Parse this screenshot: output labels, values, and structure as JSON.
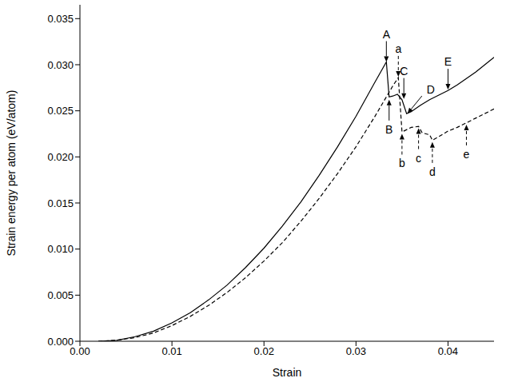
{
  "chart_data": {
    "type": "line",
    "x_label": "Strain",
    "y_label": "Strain energy per atom (eV/atom)",
    "xlim": [
      0,
      0.045
    ],
    "ylim": [
      0,
      0.0365
    ],
    "xticks": [
      {
        "value": 0,
        "label": "0.00"
      },
      0.01,
      0.02,
      0.03,
      0.04
    ],
    "yticks": [
      {
        "value": 0,
        "label": "0.000"
      },
      0.005,
      {
        "value": 0.01,
        "label": "0.010"
      },
      0.015,
      {
        "value": 0.02,
        "label": "0.020"
      },
      0.025,
      {
        "value": 0.03,
        "label": "0.030"
      },
      0.035
    ],
    "grid": false,
    "series": [
      {
        "color": "#000000",
        "line_style": "solid",
        "x": [
          0.002,
          0.004,
          0.006,
          0.008,
          0.01,
          0.012,
          0.014,
          0.016,
          0.018,
          0.02,
          0.022,
          0.024,
          0.026,
          0.028,
          0.03,
          0.032,
          0.0333,
          0.0336,
          0.034,
          0.0345,
          0.035,
          0.0355,
          0.036,
          0.037,
          0.038,
          0.039,
          0.04,
          0.041,
          0.042,
          0.043,
          0.044,
          0.045
        ],
        "values": [
          0,
          0.0001,
          0.0005,
          0.0011,
          0.002,
          0.0031,
          0.0045,
          0.0061,
          0.008,
          0.0101,
          0.0125,
          0.0151,
          0.018,
          0.0211,
          0.0244,
          0.028,
          0.0303,
          0.0265,
          0.0266,
          0.0268,
          0.0262,
          0.0247,
          0.0249,
          0.0256,
          0.0262,
          0.0267,
          0.0272,
          0.0278,
          0.0285,
          0.0292,
          0.03,
          0.0308
        ]
      },
      {
        "color": "#000000",
        "line_style": "dashed",
        "x": [
          0.002,
          0.004,
          0.006,
          0.008,
          0.01,
          0.012,
          0.014,
          0.016,
          0.018,
          0.02,
          0.022,
          0.024,
          0.026,
          0.028,
          0.03,
          0.032,
          0.034,
          0.0346,
          0.035,
          0.036,
          0.0368,
          0.0372,
          0.038,
          0.0383,
          0.039,
          0.04,
          0.041,
          0.042,
          0.043,
          0.044,
          0.045
        ],
        "values": [
          0,
          0.0001,
          0.0004,
          0.0009,
          0.0017,
          0.0027,
          0.0039,
          0.0053,
          0.0069,
          0.0087,
          0.0107,
          0.013,
          0.0155,
          0.0182,
          0.0211,
          0.0243,
          0.0277,
          0.0286,
          0.0227,
          0.0232,
          0.0233,
          0.0226,
          0.0224,
          0.0218,
          0.0222,
          0.0228,
          0.0232,
          0.0237,
          0.0242,
          0.0247,
          0.0252
        ]
      }
    ],
    "annotations": [
      {
        "text": "A",
        "x": 0.0333,
        "y": 0.0303,
        "position": "above",
        "line_style": "solid"
      },
      {
        "text": "B",
        "x": 0.0336,
        "y": 0.0262,
        "position": "below",
        "line_style": "solid"
      },
      {
        "text": "C",
        "x": 0.0352,
        "y": 0.0263,
        "position": "above",
        "line_style": "solid"
      },
      {
        "text": "D",
        "x": 0.0356,
        "y": 0.0247,
        "position": "above-right",
        "line_style": "solid"
      },
      {
        "text": "E",
        "x": 0.04,
        "y": 0.0273,
        "position": "above",
        "line_style": "solid"
      },
      {
        "text": "a",
        "x": 0.0346,
        "y": 0.0287,
        "position": "above",
        "line_style": "dashed"
      },
      {
        "text": "b",
        "x": 0.035,
        "y": 0.0225,
        "position": "below",
        "line_style": "dashed"
      },
      {
        "text": "c",
        "x": 0.0368,
        "y": 0.0231,
        "position": "below",
        "line_style": "dashed"
      },
      {
        "text": "d",
        "x": 0.0383,
        "y": 0.0216,
        "position": "below",
        "line_style": "dashed"
      },
      {
        "text": "e",
        "x": 0.042,
        "y": 0.0235,
        "position": "below",
        "line_style": "dashed"
      }
    ]
  }
}
